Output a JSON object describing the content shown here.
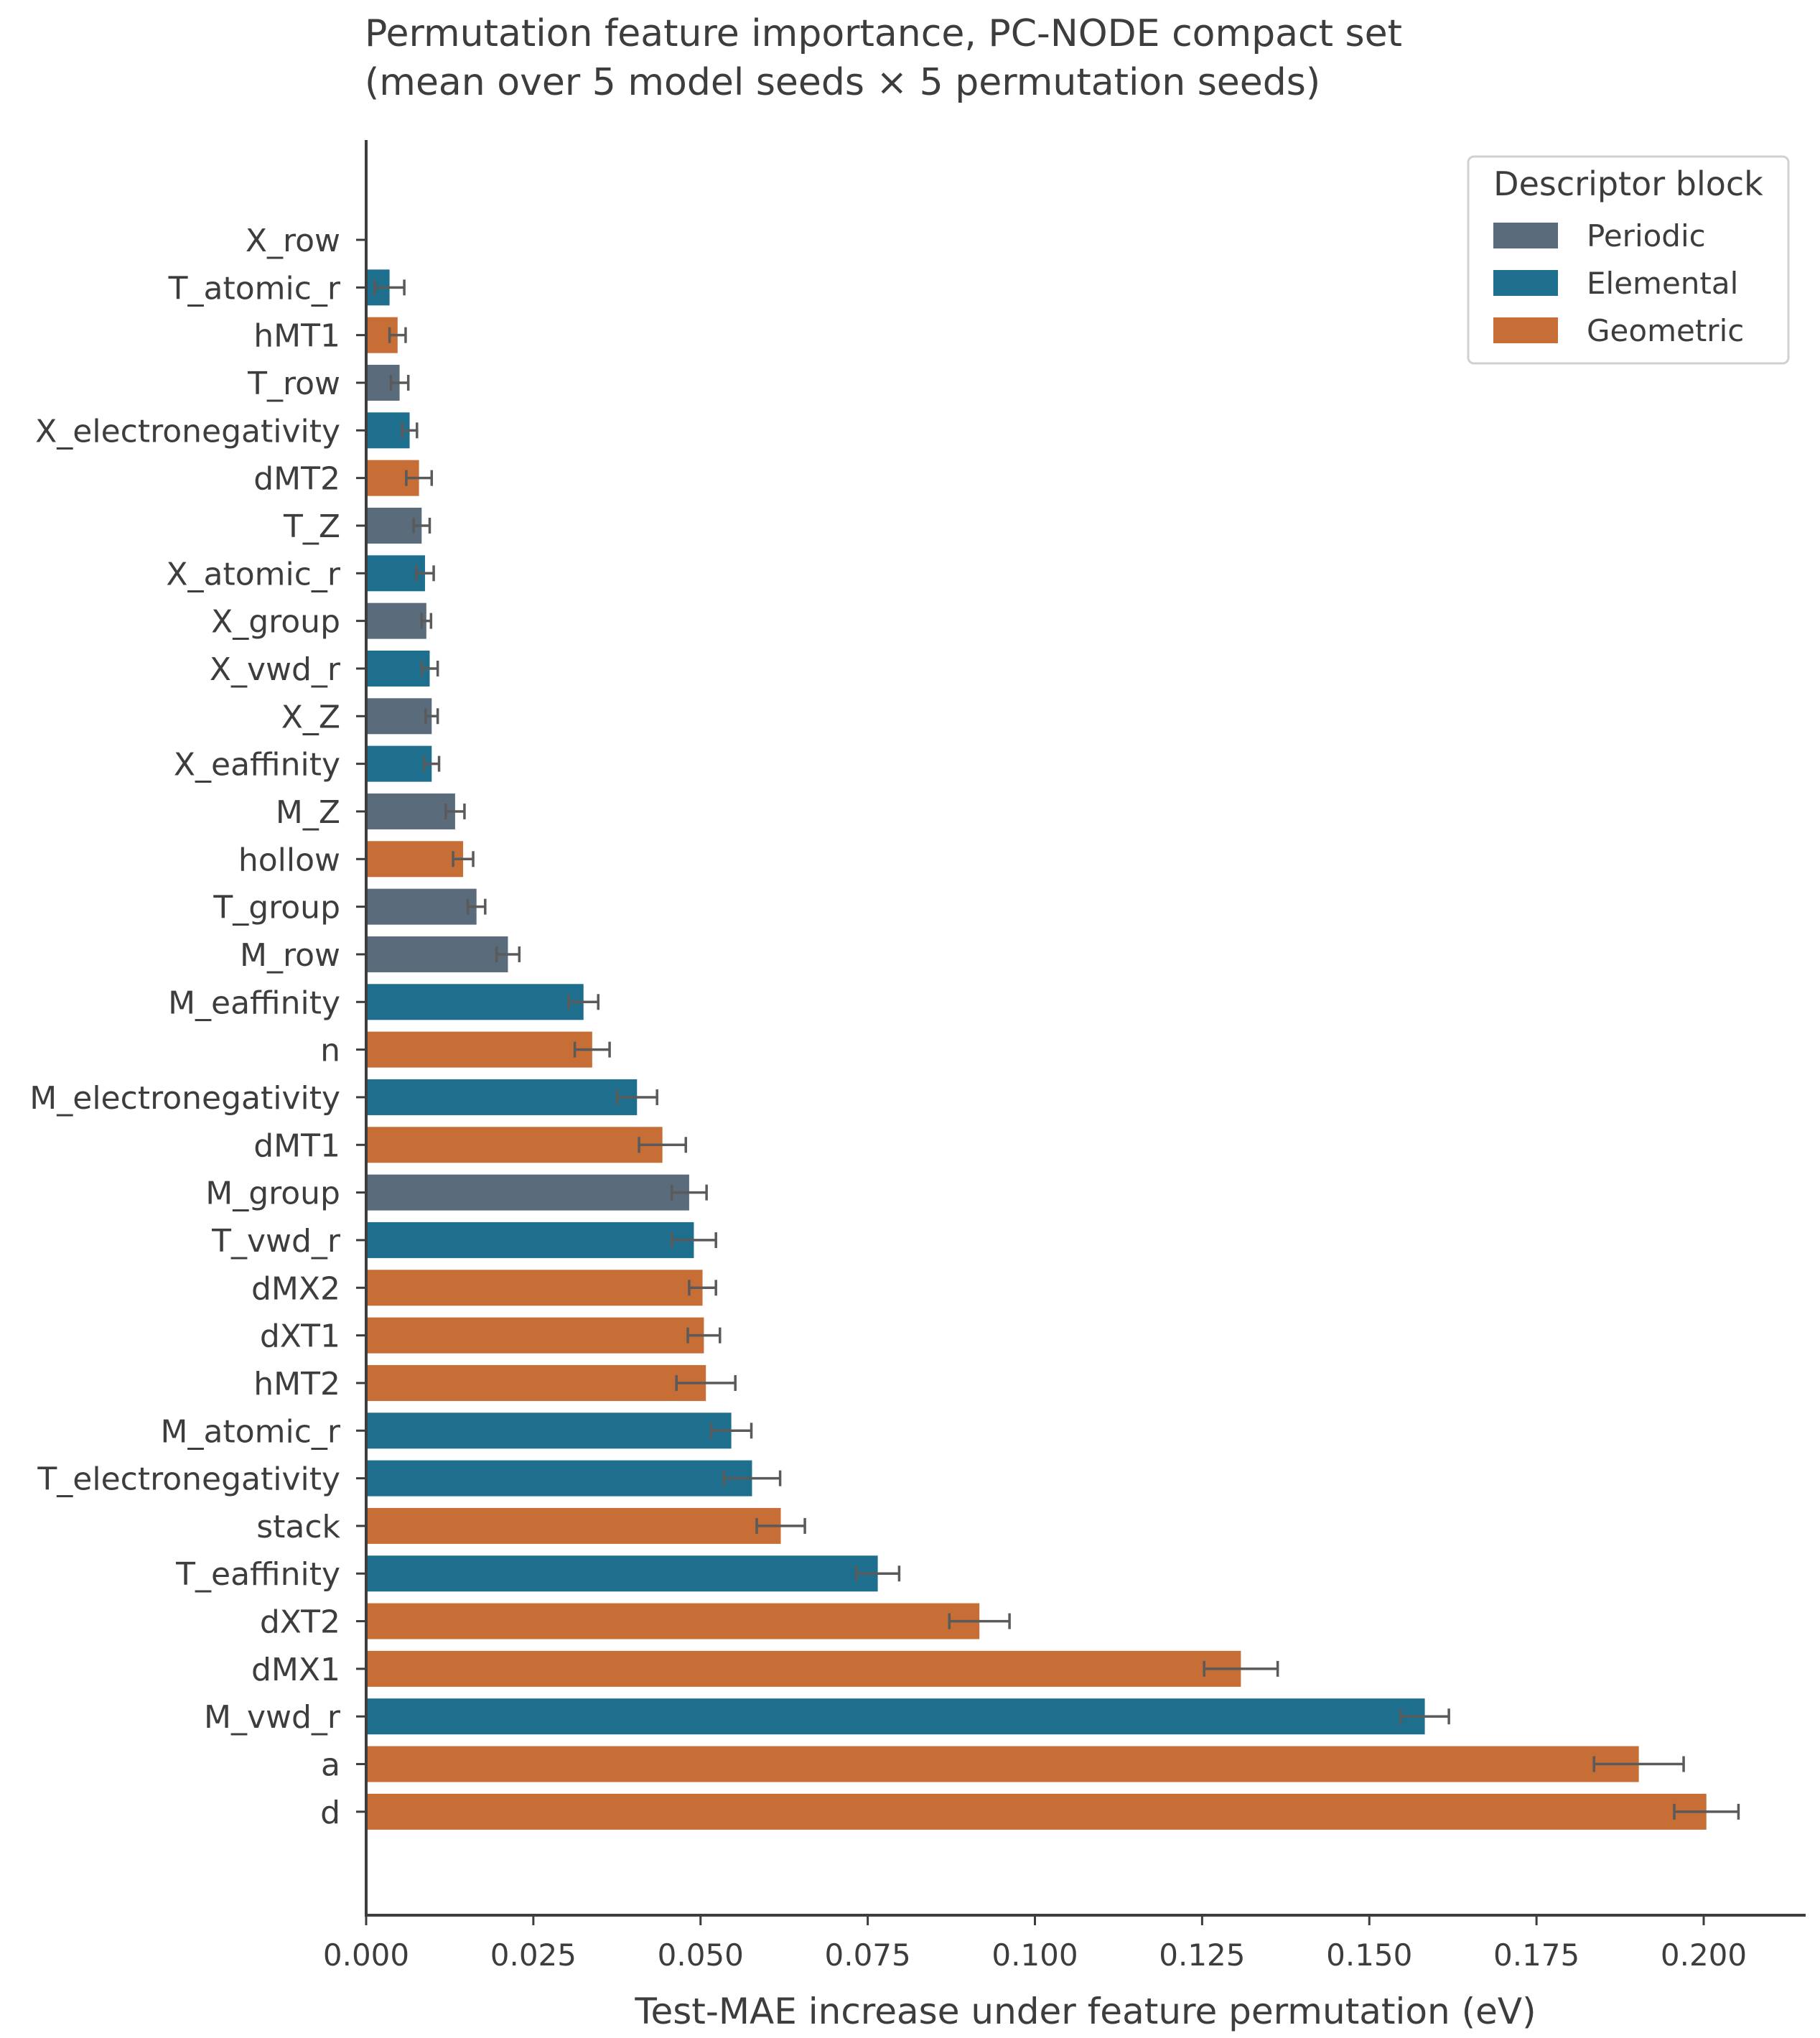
{
  "chart_data": {
    "type": "bar",
    "orientation": "horizontal",
    "title_line1": "Permutation feature importance, PC-NODE compact set",
    "title_line2": "(mean over 5 model seeds × 5 permutation seeds)",
    "xlabel": "Test-MAE increase under feature permutation (eV)",
    "ylabel": "",
    "xlim": [
      0,
      0.2155
    ],
    "xticks": [
      "0.000",
      "0.025",
      "0.050",
      "0.075",
      "0.100",
      "0.125",
      "0.150",
      "0.175",
      "0.200"
    ],
    "grid": false,
    "legend": {
      "title": "Descriptor block",
      "placement": "top-right",
      "entries": [
        {
          "name": "Periodic",
          "color": "#5a6b7b"
        },
        {
          "name": "Elemental",
          "color": "#1e6f8e"
        },
        {
          "name": "Geometric",
          "color": "#c76d36"
        }
      ]
    },
    "colors": {
      "Periodic": "#5a6b7b",
      "Elemental": "#1e6f8e",
      "Geometric": "#c76d36",
      "errorbar": "#5a5a5a",
      "axis": "#3d3d3d"
    },
    "bars": [
      {
        "label": "X_row",
        "value": 0.0,
        "err": 0.0,
        "block": "Periodic"
      },
      {
        "label": "T_atomic_r",
        "value": 0.0035,
        "err": 0.0022,
        "block": "Elemental"
      },
      {
        "label": "hMT1",
        "value": 0.0047,
        "err": 0.0012,
        "block": "Geometric"
      },
      {
        "label": "T_row",
        "value": 0.005,
        "err": 0.0013,
        "block": "Periodic"
      },
      {
        "label": "X_electronegativity",
        "value": 0.0065,
        "err": 0.0011,
        "block": "Elemental"
      },
      {
        "label": "dMT2",
        "value": 0.0079,
        "err": 0.0019,
        "block": "Geometric"
      },
      {
        "label": "T_Z",
        "value": 0.0083,
        "err": 0.0012,
        "block": "Periodic"
      },
      {
        "label": "X_atomic_r",
        "value": 0.0088,
        "err": 0.0013,
        "block": "Elemental"
      },
      {
        "label": "X_group",
        "value": 0.009,
        "err": 0.0007,
        "block": "Periodic"
      },
      {
        "label": "X_vwd_r",
        "value": 0.0095,
        "err": 0.0012,
        "block": "Elemental"
      },
      {
        "label": "X_Z",
        "value": 0.0098,
        "err": 0.0009,
        "block": "Periodic"
      },
      {
        "label": "X_eaffinity",
        "value": 0.0098,
        "err": 0.0011,
        "block": "Elemental"
      },
      {
        "label": "M_Z",
        "value": 0.0133,
        "err": 0.0014,
        "block": "Periodic"
      },
      {
        "label": "hollow",
        "value": 0.0145,
        "err": 0.0015,
        "block": "Geometric"
      },
      {
        "label": "T_group",
        "value": 0.0165,
        "err": 0.0013,
        "block": "Periodic"
      },
      {
        "label": "M_row",
        "value": 0.0212,
        "err": 0.0017,
        "block": "Periodic"
      },
      {
        "label": "M_eaffinity",
        "value": 0.0325,
        "err": 0.0022,
        "block": "Elemental"
      },
      {
        "label": "n",
        "value": 0.0338,
        "err": 0.0026,
        "block": "Geometric"
      },
      {
        "label": "M_electronegativity",
        "value": 0.0405,
        "err": 0.003,
        "block": "Elemental"
      },
      {
        "label": "dMT1",
        "value": 0.0443,
        "err": 0.0035,
        "block": "Geometric"
      },
      {
        "label": "M_group",
        "value": 0.0483,
        "err": 0.0026,
        "block": "Periodic"
      },
      {
        "label": "T_vwd_r",
        "value": 0.049,
        "err": 0.0033,
        "block": "Elemental"
      },
      {
        "label": "dMX2",
        "value": 0.0503,
        "err": 0.002,
        "block": "Geometric"
      },
      {
        "label": "dXT1",
        "value": 0.0505,
        "err": 0.0024,
        "block": "Geometric"
      },
      {
        "label": "hMT2",
        "value": 0.0508,
        "err": 0.0044,
        "block": "Geometric"
      },
      {
        "label": "M_atomic_r",
        "value": 0.0546,
        "err": 0.003,
        "block": "Elemental"
      },
      {
        "label": "T_electronegativity",
        "value": 0.0577,
        "err": 0.0042,
        "block": "Elemental"
      },
      {
        "label": "stack",
        "value": 0.062,
        "err": 0.0036,
        "block": "Geometric"
      },
      {
        "label": "T_eaffinity",
        "value": 0.0765,
        "err": 0.0032,
        "block": "Elemental"
      },
      {
        "label": "dXT2",
        "value": 0.0917,
        "err": 0.0045,
        "block": "Geometric"
      },
      {
        "label": "dMX1",
        "value": 0.1308,
        "err": 0.0055,
        "block": "Geometric"
      },
      {
        "label": "M_vwd_r",
        "value": 0.1583,
        "err": 0.0036,
        "block": "Elemental"
      },
      {
        "label": "a",
        "value": 0.1903,
        "err": 0.0067,
        "block": "Geometric"
      },
      {
        "label": "d",
        "value": 0.2004,
        "err": 0.0048,
        "block": "Geometric"
      }
    ]
  }
}
